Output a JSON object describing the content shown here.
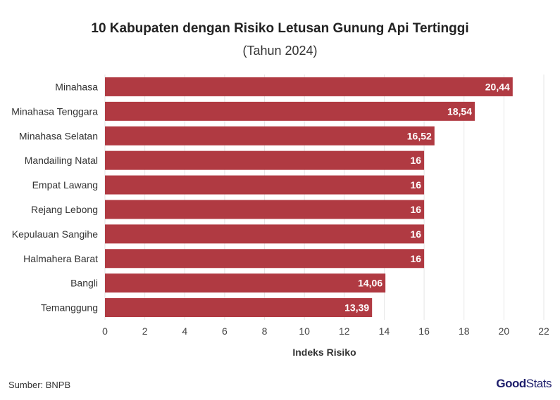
{
  "title": "10 Kabupaten dengan Risiko Letusan Gunung Api Tertinggi",
  "subtitle": "(Tahun 2024)",
  "source": "Sumber: BNPB",
  "brand": {
    "part1": "Good",
    "part2": "Stats"
  },
  "colors": {
    "bar": "#b03a42",
    "grid": "#e6e6e6",
    "label": "#ffffff"
  },
  "chart_data": {
    "type": "bar",
    "orientation": "horizontal",
    "categories": [
      "Minahasa",
      "Minahasa Tenggara",
      "Minahasa Selatan",
      "Mandailing Natal",
      "Empat Lawang",
      "Rejang Lebong",
      "Kepulauan Sangihe",
      "Halmahera Barat",
      "Bangli",
      "Temanggung"
    ],
    "values": [
      20.44,
      18.54,
      16.52,
      16,
      16,
      16,
      16,
      16,
      14.06,
      13.39
    ],
    "value_labels": [
      "20,44",
      "18,54",
      "16,52",
      "16",
      "16",
      "16",
      "16",
      "16",
      "14,06",
      "13,39"
    ],
    "xlabel": "Indeks Risiko",
    "ylabel": "",
    "xlim": [
      0,
      22
    ],
    "xticks": [
      0,
      2,
      4,
      6,
      8,
      10,
      12,
      14,
      16,
      18,
      20,
      22
    ],
    "grid": true
  }
}
